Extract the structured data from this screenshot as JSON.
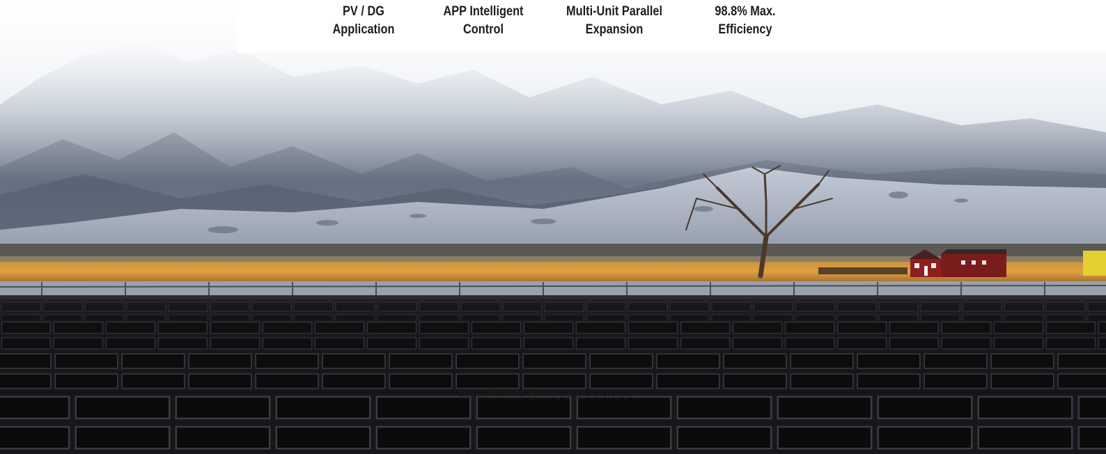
{
  "features": [
    {
      "line1": "PV / DG",
      "line2": "Application"
    },
    {
      "line1": "APP Intelligent",
      "line2": "Control"
    },
    {
      "line1": "Multi-Unit Parallel",
      "line2": "Expansion"
    },
    {
      "line1": "98.8% Max.",
      "line2": "Efficiency"
    }
  ],
  "hero": {
    "caption": "POWERED BY XXXXXXXXXX",
    "scene": "solar-farm-mountains"
  },
  "colors": {
    "feature_text": "#1d1d1d",
    "panel_dark": "#111111",
    "grass": "#d49a3a",
    "barn": "#8e1f1f"
  }
}
